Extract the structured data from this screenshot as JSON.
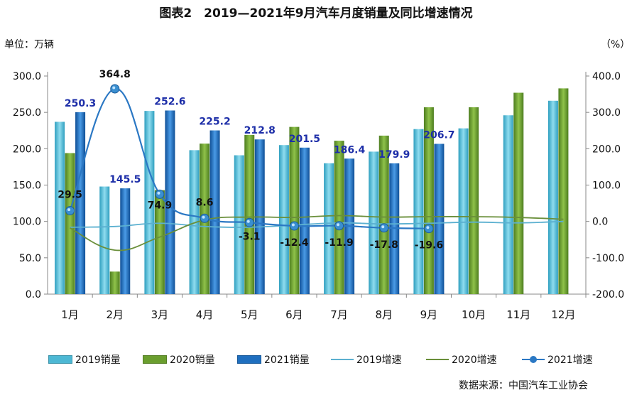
{
  "title": "图表2　2019—2021年9月汽车月度销量及同比增速情况",
  "unit_left": "单位：万辆",
  "unit_right": "（%）",
  "source": "数据来源：中国汽车工业协会",
  "colors": {
    "sales_2019": "#4db8d4",
    "sales_2020": "#6a9e2e",
    "sales_2021": "#1f6fbf",
    "growth_2019": "#5bb0d0",
    "growth_2020": "#6a8f3a",
    "growth_2021": "#2b78c4",
    "label_2021": "#1d2ea8",
    "label_growth": "#111111"
  },
  "legend": [
    {
      "label": "2019销量",
      "kind": "bar",
      "color_key": "sales_2019"
    },
    {
      "label": "2020销量",
      "kind": "bar",
      "color_key": "sales_2020"
    },
    {
      "label": "2021销量",
      "kind": "bar",
      "color_key": "sales_2021"
    },
    {
      "label": "2019增速",
      "kind": "line",
      "color_key": "growth_2019"
    },
    {
      "label": "2020增速",
      "kind": "line",
      "color_key": "growth_2020"
    },
    {
      "label": "2021增速",
      "kind": "line-marker",
      "color_key": "growth_2021"
    }
  ],
  "chart_data": {
    "type": "bar",
    "categories": [
      "1月",
      "2月",
      "3月",
      "4月",
      "5月",
      "6月",
      "7月",
      "8月",
      "9月",
      "10月",
      "11月",
      "12月"
    ],
    "left_axis": {
      "min": 0,
      "max": 300,
      "ticks": [
        "0.0",
        "50.0",
        "100.0",
        "150.0",
        "200.0",
        "250.0",
        "300.0"
      ]
    },
    "right_axis": {
      "min": -200,
      "max": 400,
      "ticks": [
        "-200.0",
        "-100.0",
        "0.0",
        "100.0",
        "200.0",
        "300.0",
        "400.0"
      ]
    },
    "bar_series": [
      {
        "name": "2019销量",
        "values": [
          237,
          148,
          252,
          198,
          191,
          205,
          180,
          196,
          227,
          228,
          246,
          266
        ]
      },
      {
        "name": "2020销量",
        "values": [
          194,
          31,
          143,
          207,
          219,
          230,
          211,
          218,
          257,
          257,
          277,
          283
        ]
      },
      {
        "name": "2021销量",
        "values": [
          250.3,
          145.5,
          252.6,
          225.2,
          212.8,
          201.5,
          186.4,
          179.9,
          206.7,
          null,
          null,
          null
        ],
        "labels": [
          "250.3",
          "145.5",
          "252.6",
          "225.2",
          "212.8",
          "201.5",
          "186.4",
          "179.9",
          "206.7",
          "",
          "",
          ""
        ]
      }
    ],
    "line_series": [
      {
        "name": "2019增速",
        "axis": "right",
        "values": [
          -16,
          -14,
          -5,
          -14,
          -16,
          -10,
          -4,
          -7,
          -5,
          -2,
          -4,
          0
        ]
      },
      {
        "name": "2020增速",
        "axis": "right",
        "values": [
          -18,
          -79,
          -43,
          4,
          12,
          11,
          16,
          12,
          13,
          13,
          11,
          6
        ]
      },
      {
        "name": "2021增速",
        "axis": "right",
        "values": [
          29.5,
          364.8,
          74.9,
          8.6,
          -3.1,
          -12.4,
          -11.9,
          -17.8,
          -19.6,
          null,
          null,
          null
        ],
        "labels": [
          "29.5",
          "364.8",
          "74.9",
          "8.6",
          "-3.1",
          "-12.4",
          "-11.9",
          "-17.8",
          "-19.6",
          "",
          "",
          ""
        ]
      }
    ],
    "grid": false,
    "legend_position": "bottom"
  }
}
